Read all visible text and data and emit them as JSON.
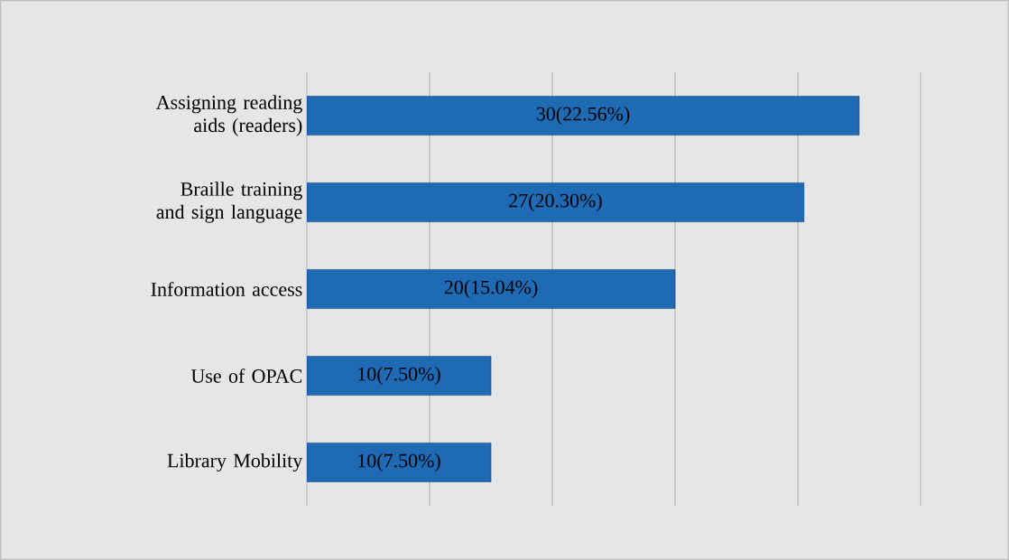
{
  "chart_data": {
    "type": "bar",
    "orientation": "horizontal",
    "categories": [
      "Assigning reading aids (readers)",
      "Braille training and sign language",
      "Information access",
      "Use of OPAC",
      "Library Mobility"
    ],
    "values": [
      30,
      27,
      20,
      10,
      10
    ],
    "value_labels": [
      "30(22.56%)",
      "27(20.30%)",
      "20(15.04%)",
      "10(7.50%)",
      "10(7.50%)"
    ],
    "color": "#1f6ab4",
    "xlim": [
      0,
      33.33
    ],
    "xticks": [
      {
        "value": 0,
        "label": null
      },
      {
        "value": 6.67,
        "label": null
      },
      {
        "value": 13.33,
        "label": null
      },
      {
        "value": 20,
        "label": null
      },
      {
        "value": 26.67,
        "label": null
      },
      {
        "value": 33.33,
        "label": null
      }
    ],
    "grid": "x",
    "tick_labels": "y"
  }
}
